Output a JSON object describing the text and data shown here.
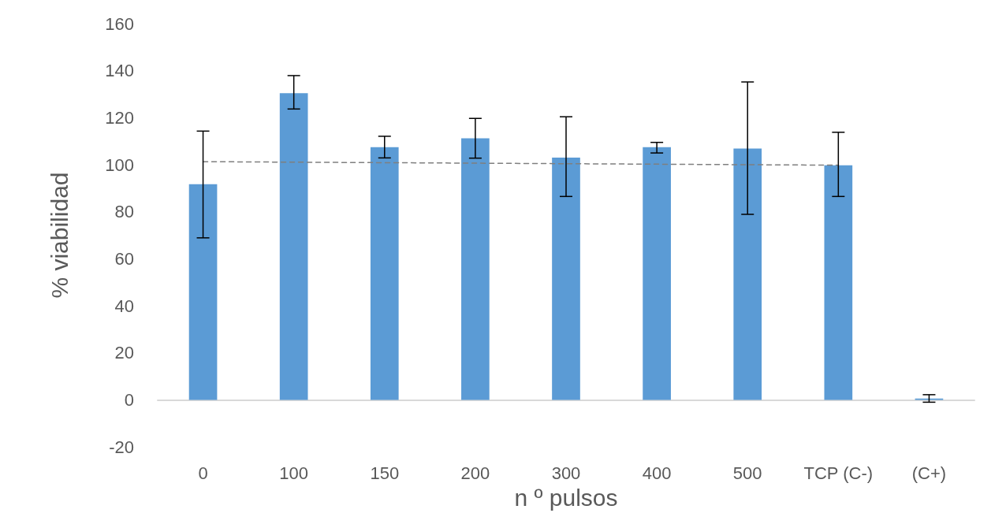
{
  "chart_data": {
    "type": "bar",
    "xlabel": "n º pulsos",
    "ylabel": "% viabilidad",
    "categories": [
      "0",
      "100",
      "150",
      "200",
      "300",
      "400",
      "500",
      "TCP (C-)",
      "(C+)"
    ],
    "series": [
      {
        "color": "#5b9bd5",
        "values": [
          91.7,
          130.4,
          107.5,
          111.2,
          103.0,
          107.5,
          106.9,
          99.8,
          0.6
        ],
        "errors": [
          [
            68.9,
            114.3
          ],
          [
            123.7,
            137.9
          ],
          [
            102.9,
            112.1
          ],
          [
            102.8,
            119.7
          ],
          [
            86.5,
            120.4
          ],
          [
            105.0,
            109.5
          ],
          [
            78.9,
            135.2
          ],
          [
            86.5,
            113.8
          ],
          1.6
        ]
      },
      {
        "type": "line",
        "color": "#7f7f7f",
        "line_style": "dashed",
        "marker": "none",
        "x": [
          "0",
          "TCP (C-)"
        ],
        "values": [
          101.3,
          99.8
        ]
      }
    ],
    "ylim": [
      -20,
      160
    ],
    "yticks": [
      -20,
      0,
      20,
      40,
      60,
      80,
      100,
      120,
      140,
      160
    ]
  }
}
